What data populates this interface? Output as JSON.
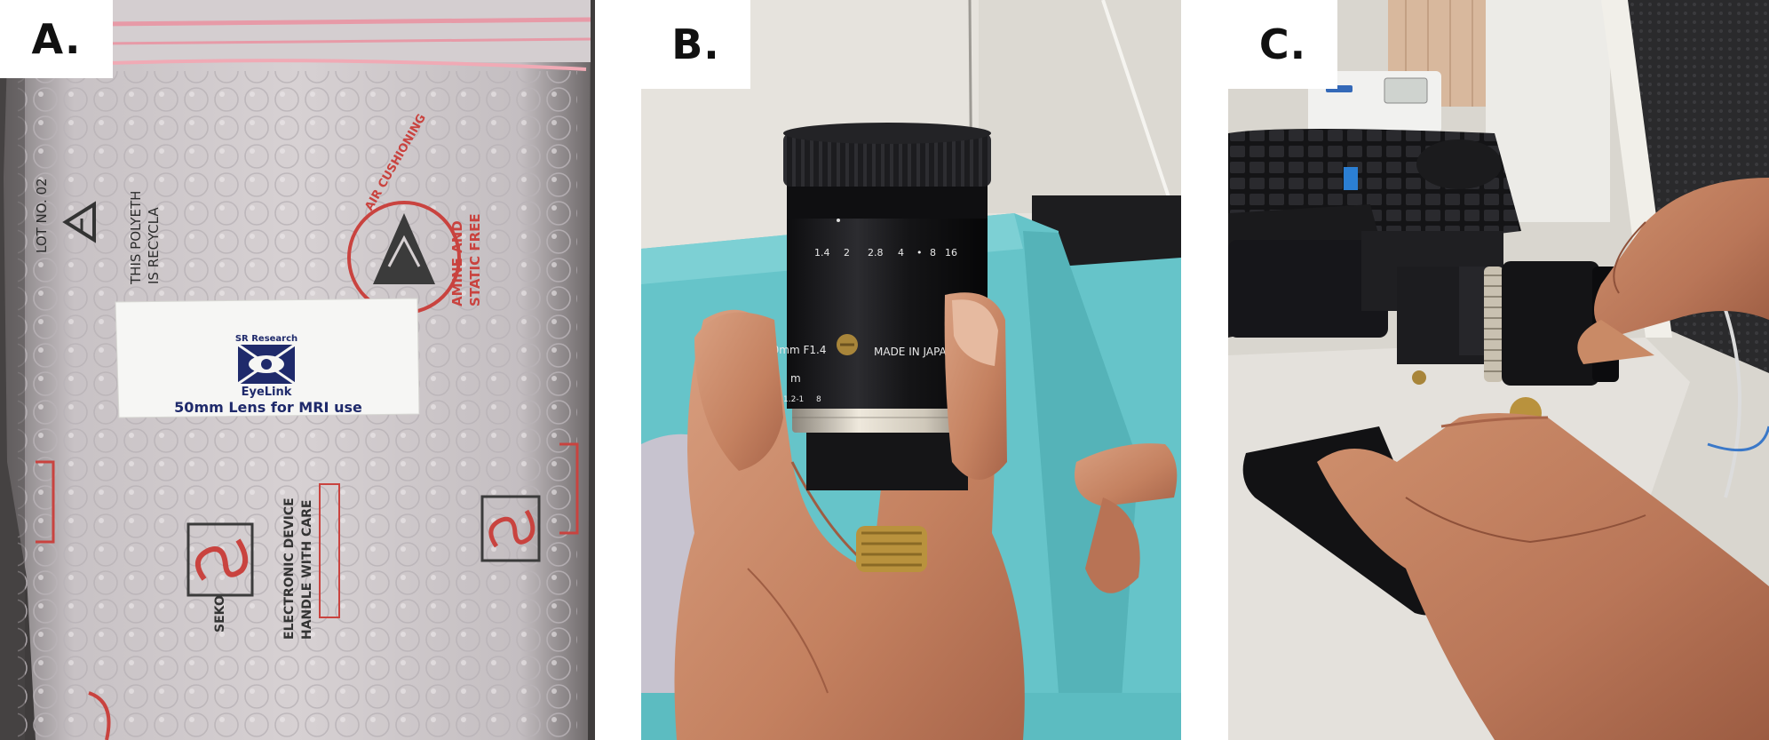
{
  "panels": [
    {
      "letter": "A.",
      "subject": "sealed anti-static bubble bag containing a lens",
      "sticker": {
        "company": "SR Research",
        "brand": "EyeLink",
        "caption": "50mm Lens for MRI use"
      },
      "bag_print": {
        "lot": "LOT NO. 02",
        "recycle_1": "THIS POLYETH",
        "recycle_2": "IS RECYCLA",
        "esd_1": "AMINE AND",
        "esd_2": "STATIC FREE",
        "ring_text": "AIR CUSHIONING",
        "device_1": "ELECTRONIC DEVICE",
        "device_2": "HANDLE WITH CARE",
        "brand_mark": "SEKO"
      }
    },
    {
      "letter": "B.",
      "subject": "hand holding a 50mm camera lens",
      "lens": {
        "aperture_scale": [
          "1.4",
          "2",
          "2.8",
          "4",
          "•",
          "8",
          "16"
        ],
        "model": "50mm F1.4",
        "origin": "MADE IN JAPAN",
        "focus_mark_1": "∞",
        "focus_mark_2": "m",
        "focus_mark_3": "1.2-1",
        "focus_mark_4": "8"
      }
    },
    {
      "letter": "C.",
      "subject": "hands mounting the lens onto an eye-tracking camera beside a keyboard"
    }
  ],
  "colors": {
    "bag": "#c9c3c6",
    "bag_red": "#c9433f",
    "bag_zip": "#e79aa7",
    "sticker_navy": "#1f2a6b",
    "box_teal": "#66c4c9",
    "skin": "#c98a66",
    "lens_black": "#1b1b1d",
    "ring_silver": "#d9d2c4"
  }
}
